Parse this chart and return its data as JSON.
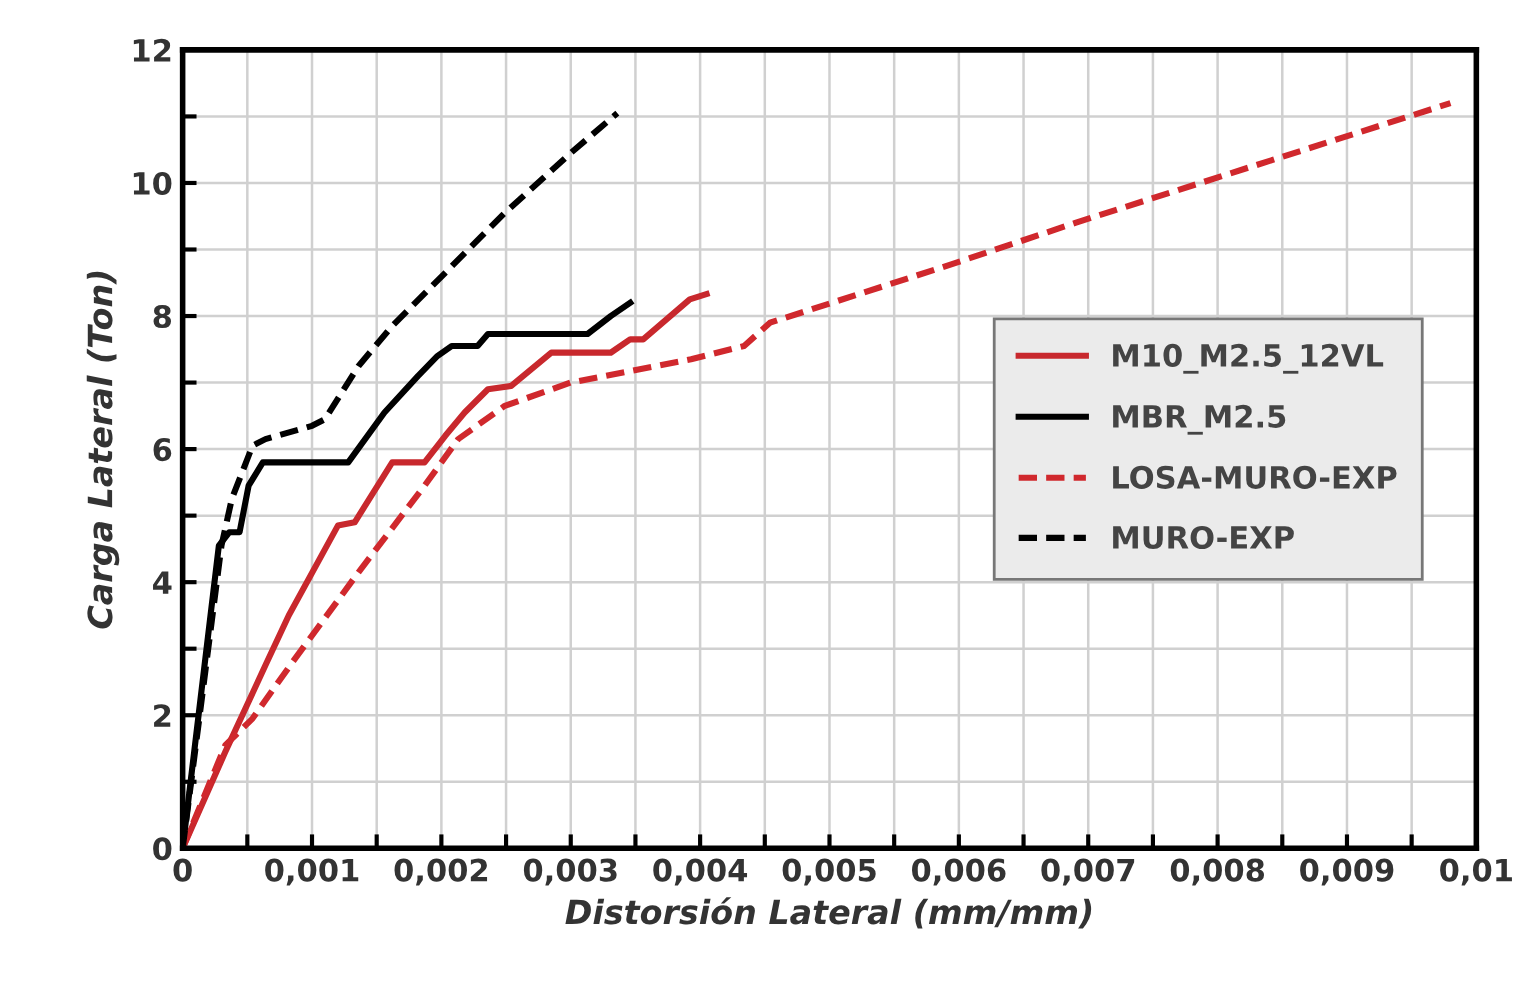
{
  "chart_data": {
    "type": "line",
    "xlabel": "Distorsión Lateral (mm/mm)",
    "ylabel": "Carga Lateral (Ton)",
    "xlim": [
      0,
      0.01
    ],
    "ylim": [
      0,
      12
    ],
    "xticks": [
      0,
      {
        "value": 0.0005,
        "label": null
      },
      {
        "value": 0.001,
        "label": "0,001"
      },
      {
        "value": 0.0015,
        "label": null
      },
      {
        "value": 0.002,
        "label": "0,002"
      },
      {
        "value": 0.0025,
        "label": null
      },
      {
        "value": 0.003,
        "label": "0,003"
      },
      {
        "value": 0.0035,
        "label": null
      },
      {
        "value": 0.004,
        "label": "0,004"
      },
      {
        "value": 0.0045,
        "label": null
      },
      {
        "value": 0.005,
        "label": "0,005"
      },
      {
        "value": 0.0055,
        "label": null
      },
      {
        "value": 0.006,
        "label": "0,006"
      },
      {
        "value": 0.0065,
        "label": null
      },
      {
        "value": 0.007,
        "label": "0,007"
      },
      {
        "value": 0.0075,
        "label": null
      },
      {
        "value": 0.008,
        "label": "0,008"
      },
      {
        "value": 0.0085,
        "label": null
      },
      {
        "value": 0.009,
        "label": "0,009"
      },
      {
        "value": 0.0095,
        "label": null
      },
      {
        "value": 0.01,
        "label": "0,01"
      }
    ],
    "yticks": [
      0,
      {
        "value": 1,
        "label": null
      },
      2,
      {
        "value": 3,
        "label": null
      },
      4,
      {
        "value": 5,
        "label": null
      },
      6,
      {
        "value": 7,
        "label": null
      },
      8,
      {
        "value": 9,
        "label": null
      },
      10,
      {
        "value": 11,
        "label": null
      },
      12
    ],
    "grid": true,
    "legend": "right",
    "marker": "none",
    "series": [
      {
        "name": "M10_M2.5_12VL",
        "color": "#c8282d",
        "line_style": "solid",
        "x": [
          0,
          0.00033,
          0.00064,
          0.00082,
          0.0012,
          0.00133,
          0.00162,
          0.00187,
          0.00203,
          0.00218,
          0.00236,
          0.00254,
          0.00285,
          0.00331,
          0.00346,
          0.00356,
          0.00392,
          0.00405
        ],
        "values": [
          0,
          1.45,
          2.75,
          3.5,
          4.85,
          4.9,
          5.8,
          5.8,
          6.2,
          6.55,
          6.9,
          6.95,
          7.45,
          7.45,
          7.65,
          7.65,
          8.25,
          8.33
        ]
      },
      {
        "name": "MBR_M2.5",
        "color": "#000000",
        "line_style": "solid",
        "x": [
          0,
          0.00028,
          0.00036,
          0.00044,
          0.00051,
          0.00062,
          0.00128,
          0.00156,
          0.00182,
          0.00197,
          0.00208,
          0.00228,
          0.00236,
          0.00313,
          0.00331,
          0.00346
        ],
        "values": [
          0,
          4.55,
          4.75,
          4.75,
          5.45,
          5.8,
          5.8,
          6.55,
          7.1,
          7.4,
          7.55,
          7.55,
          7.73,
          7.73,
          8.0,
          8.2
        ]
      },
      {
        "name": "LOSA-MURO-EXP",
        "color": "#d0282d",
        "line_style": "dashed",
        "x": [
          0,
          0.00033,
          0.00054,
          0.00085,
          0.00136,
          0.00187,
          0.00213,
          0.00249,
          0.003,
          0.00393,
          0.00434,
          0.00454,
          0.0059,
          0.0069,
          0.0098
        ],
        "values": [
          0,
          1.55,
          1.95,
          2.8,
          4.15,
          5.45,
          6.15,
          6.65,
          7.0,
          7.35,
          7.55,
          7.9,
          8.75,
          9.4,
          11.2
        ]
      },
      {
        "name": "MURO-EXP",
        "color": "#000000",
        "line_style": "dashed",
        "x": [
          0,
          0.0003,
          0.00038,
          0.00054,
          0.00064,
          0.001,
          0.0011,
          0.00136,
          0.00162,
          0.00203,
          0.00249,
          0.003,
          0.00336
        ],
        "values": [
          0,
          4.55,
          5.25,
          6.05,
          6.15,
          6.35,
          6.45,
          7.25,
          7.85,
          8.65,
          9.55,
          10.45,
          11.05
        ]
      }
    ]
  }
}
